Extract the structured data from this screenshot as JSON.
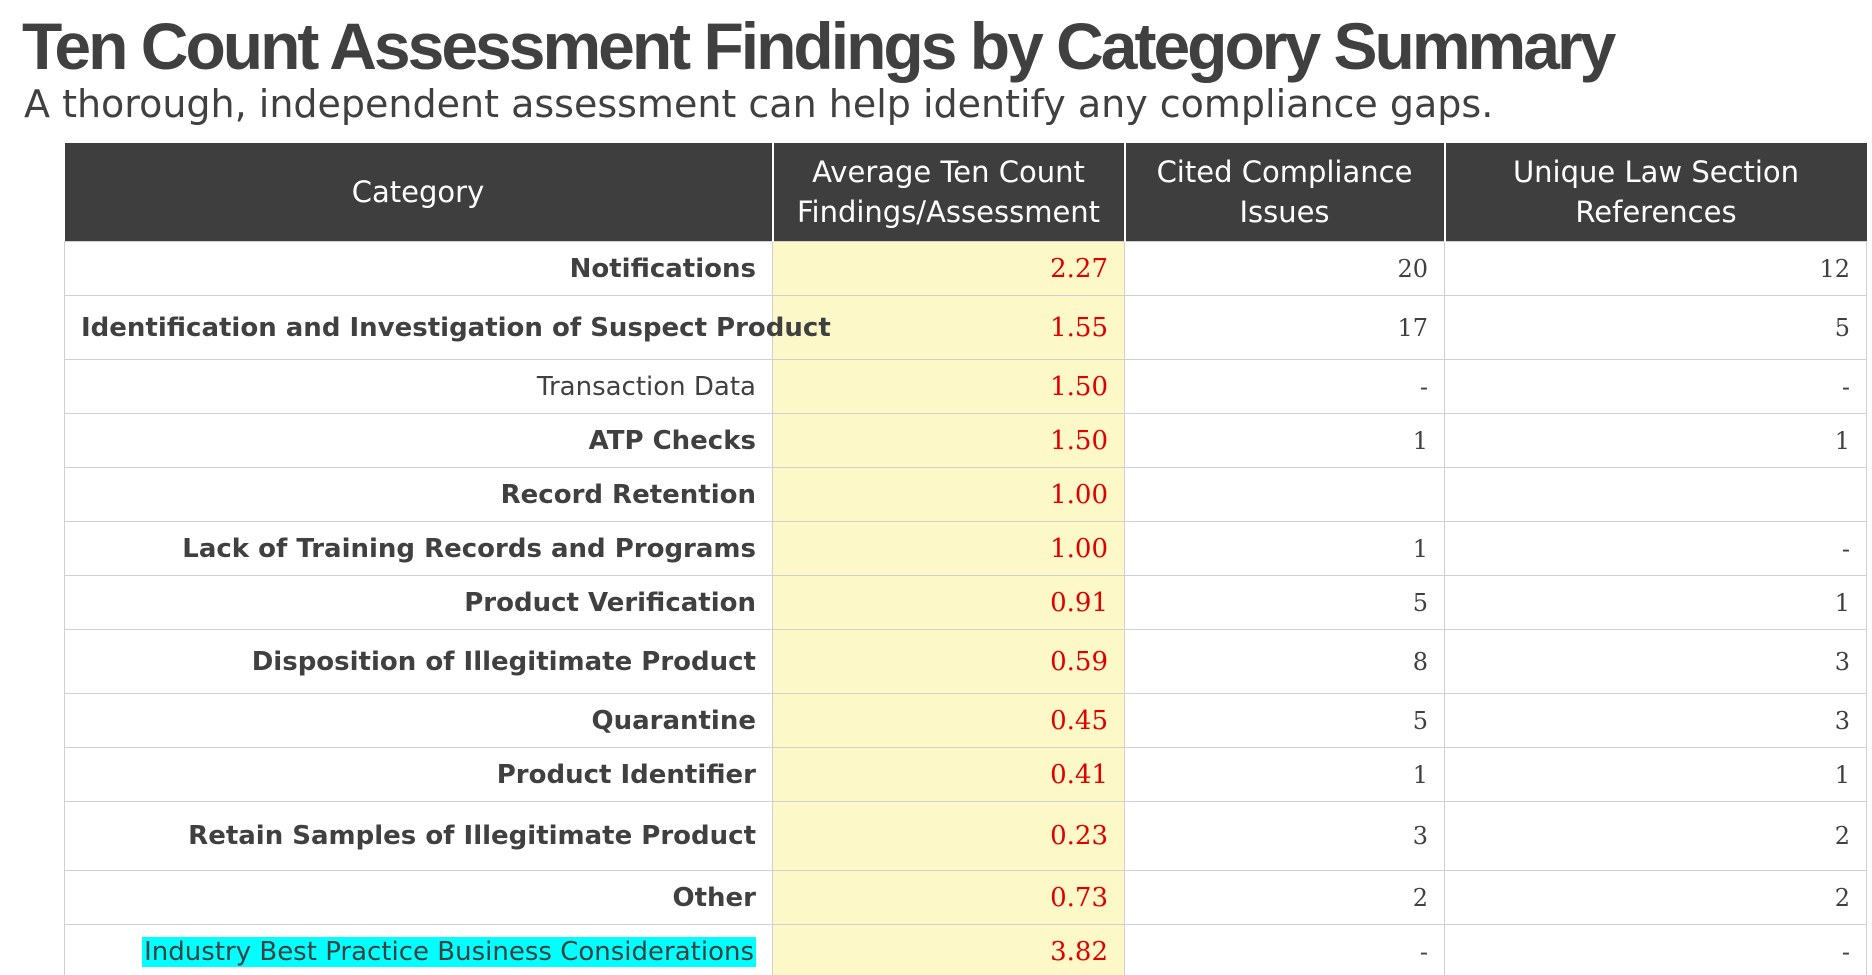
{
  "title": "Ten Count Assessment Findings by Category Summary",
  "subtitle": "A thorough, independent assessment can help identify any compliance gaps.",
  "table": {
    "headers": [
      "Category",
      "Average Ten Count Findings/Assessment",
      "Cited Compliance Issues",
      "Unique Law Section References"
    ],
    "rows": [
      {
        "category": "Notifications",
        "average": "2.27",
        "cited": "20",
        "unique": "12"
      },
      {
        "category": "Identification and Investigation of Suspect Product",
        "average": "1.55",
        "cited": "17",
        "unique": "5"
      },
      {
        "category": "Transaction Data",
        "average": "1.50",
        "cited": "-",
        "unique": "-"
      },
      {
        "category": "ATP Checks",
        "average": "1.50",
        "cited": "1",
        "unique": "1"
      },
      {
        "category": "Record Retention",
        "average": "1.00",
        "cited": "",
        "unique": ""
      },
      {
        "category": "Lack of Training Records and Programs",
        "average": "1.00",
        "cited": "1",
        "unique": "-"
      },
      {
        "category": "Product Verification",
        "average": "0.91",
        "cited": "5",
        "unique": "1"
      },
      {
        "category": "Disposition of Illegitimate Product",
        "average": "0.59",
        "cited": "8",
        "unique": "3"
      },
      {
        "category": "Quarantine",
        "average": "0.45",
        "cited": "5",
        "unique": "3"
      },
      {
        "category": "Product Identifier",
        "average": "0.41",
        "cited": "1",
        "unique": "1"
      },
      {
        "category": "Retain Samples of Illegitimate Product",
        "average": "0.23",
        "cited": "3",
        "unique": "2"
      },
      {
        "category": "Other",
        "average": "0.73",
        "cited": "2",
        "unique": "2"
      },
      {
        "category": "Industry Best Practice Business Considerations",
        "average": "3.82",
        "cited": "-",
        "unique": "-"
      }
    ]
  },
  "colors": {
    "header_bg": "#3e3e3e",
    "average_column_bg": "#fdf8c8",
    "average_text": "#e00000",
    "highlight": "#00ffff"
  }
}
